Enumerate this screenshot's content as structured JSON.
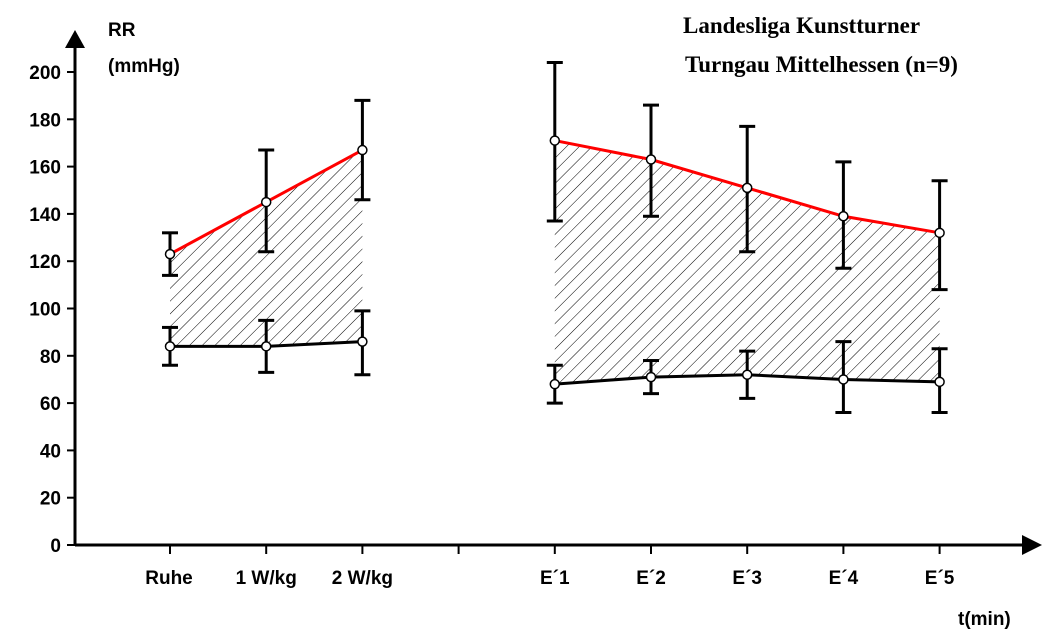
{
  "chart_data": {
    "type": "line",
    "title_lines": [
      "Landesliga Kunstturner",
      "Turngau Mittelhessen (n=9)"
    ],
    "ylabel_lines": [
      "RR",
      "(mmHg)"
    ],
    "xlabel": "t(min)",
    "ylim": [
      0,
      200
    ],
    "yticks": [
      0,
      20,
      40,
      60,
      80,
      100,
      120,
      140,
      160,
      180,
      200
    ],
    "categories": [
      "Ruhe",
      "1 W/kg",
      "2 W/kg",
      "",
      "E´1",
      "E´2",
      "E´3",
      "E´4",
      "E´5"
    ],
    "groups": [
      [
        0,
        1,
        2
      ],
      [
        4,
        5,
        6,
        7,
        8
      ]
    ],
    "series": [
      {
        "color": "#ff0000",
        "values": [
          123,
          145,
          167,
          null,
          171,
          163,
          151,
          139,
          132
        ],
        "err_high": [
          132,
          167,
          188,
          null,
          204,
          186,
          177,
          162,
          154
        ],
        "err_low": [
          114,
          124,
          146,
          null,
          137,
          139,
          124,
          117,
          108
        ]
      },
      {
        "color": "#000000",
        "values": [
          84,
          84,
          86,
          null,
          68,
          71,
          72,
          70,
          69
        ],
        "err_high": [
          92,
          95,
          99,
          null,
          76,
          78,
          82,
          86,
          83
        ],
        "err_low": [
          76,
          73,
          72,
          null,
          60,
          64,
          62,
          56,
          56
        ]
      }
    ],
    "hatched_area_between_series": true
  }
}
